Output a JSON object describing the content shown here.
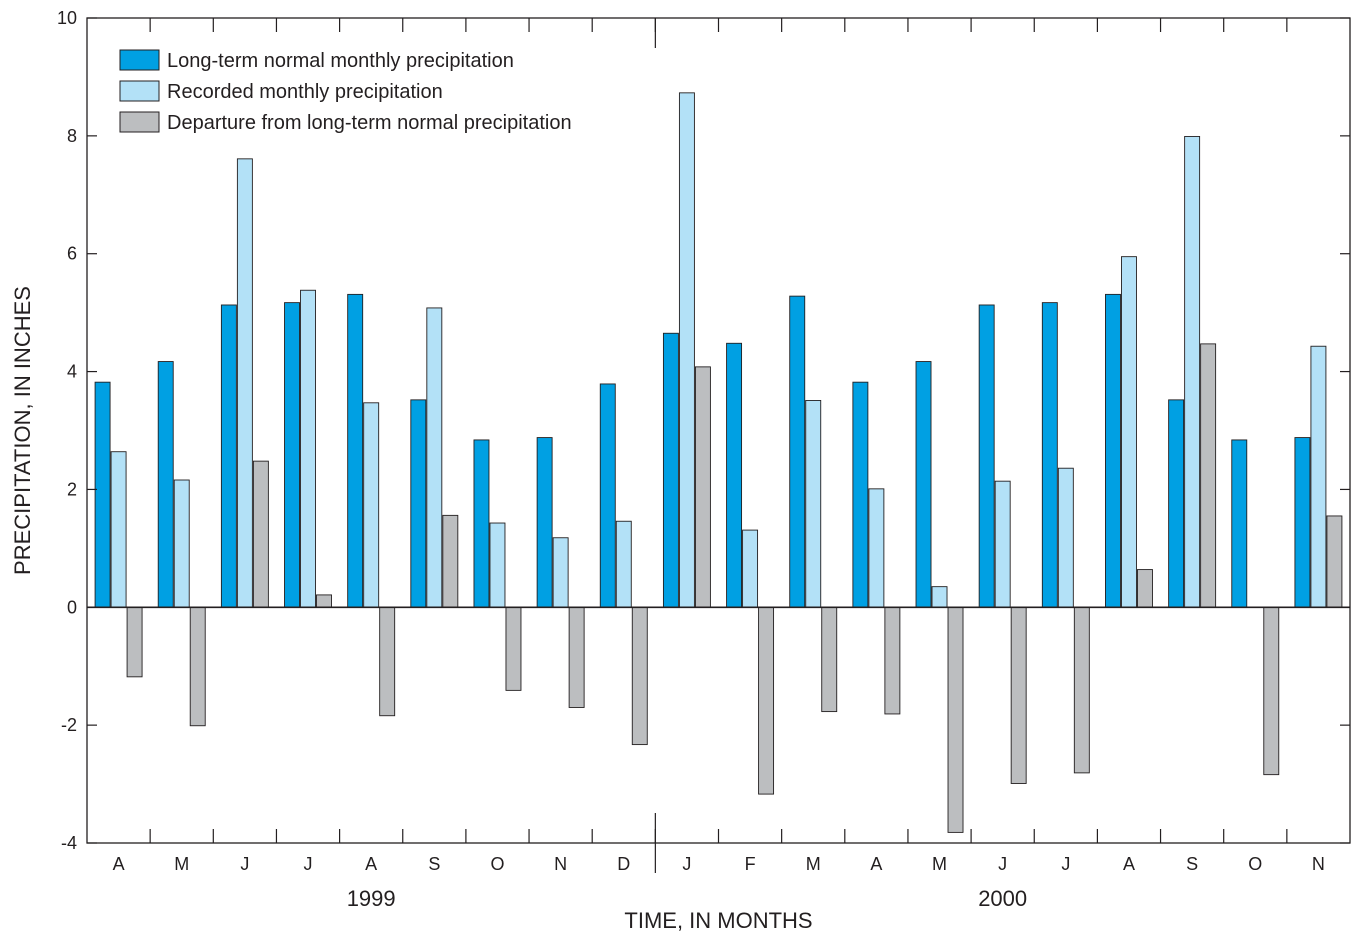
{
  "chart_data": {
    "type": "bar",
    "xlabel": "TIME, IN MONTHS",
    "ylabel": "PRECIPITATION, IN INCHES",
    "ylim": [
      -4,
      10
    ],
    "yticks": [
      "10",
      "8",
      "6",
      "4",
      "2",
      "0",
      "-2",
      "-4"
    ],
    "ytick_values": [
      10,
      8,
      6,
      4,
      2,
      0,
      -2,
      -4
    ],
    "categories": [
      "A",
      "M",
      "J",
      "J",
      "A",
      "S",
      "O",
      "N",
      "D",
      "J",
      "F",
      "M",
      "A",
      "M",
      "J",
      "J",
      "A",
      "S",
      "O",
      "N"
    ],
    "years": [
      {
        "label": "1999",
        "start_index": 0,
        "end_index": 8
      },
      {
        "label": "2000",
        "start_index": 9,
        "end_index": 19
      }
    ],
    "legend_position": "top-left",
    "grid": false,
    "series": [
      {
        "name": "Long-term normal monthly precipitation",
        "color": "#00a0e3",
        "values": [
          3.82,
          4.17,
          5.13,
          5.17,
          5.31,
          3.52,
          2.84,
          2.88,
          3.79,
          4.65,
          4.48,
          5.28,
          3.82,
          4.17,
          5.13,
          5.17,
          5.31,
          3.52,
          2.84,
          2.88
        ]
      },
      {
        "name": "Recorded monthly precipitation",
        "color": "#b3e1f7",
        "values": [
          2.64,
          2.16,
          7.61,
          5.38,
          3.47,
          5.08,
          1.43,
          1.18,
          1.46,
          8.73,
          1.31,
          3.51,
          2.01,
          0.35,
          2.14,
          2.36,
          5.95,
          7.99,
          0,
          4.43
        ]
      },
      {
        "name": "Departure from long-term normal precipitation",
        "color": "#bcbec0",
        "values": [
          -1.18,
          -2.01,
          2.48,
          0.21,
          -1.84,
          1.56,
          -1.41,
          -1.7,
          -2.33,
          4.08,
          -3.17,
          -1.77,
          -1.81,
          -3.82,
          -2.99,
          -2.81,
          0.64,
          4.47,
          -2.84,
          1.55
        ]
      }
    ]
  }
}
